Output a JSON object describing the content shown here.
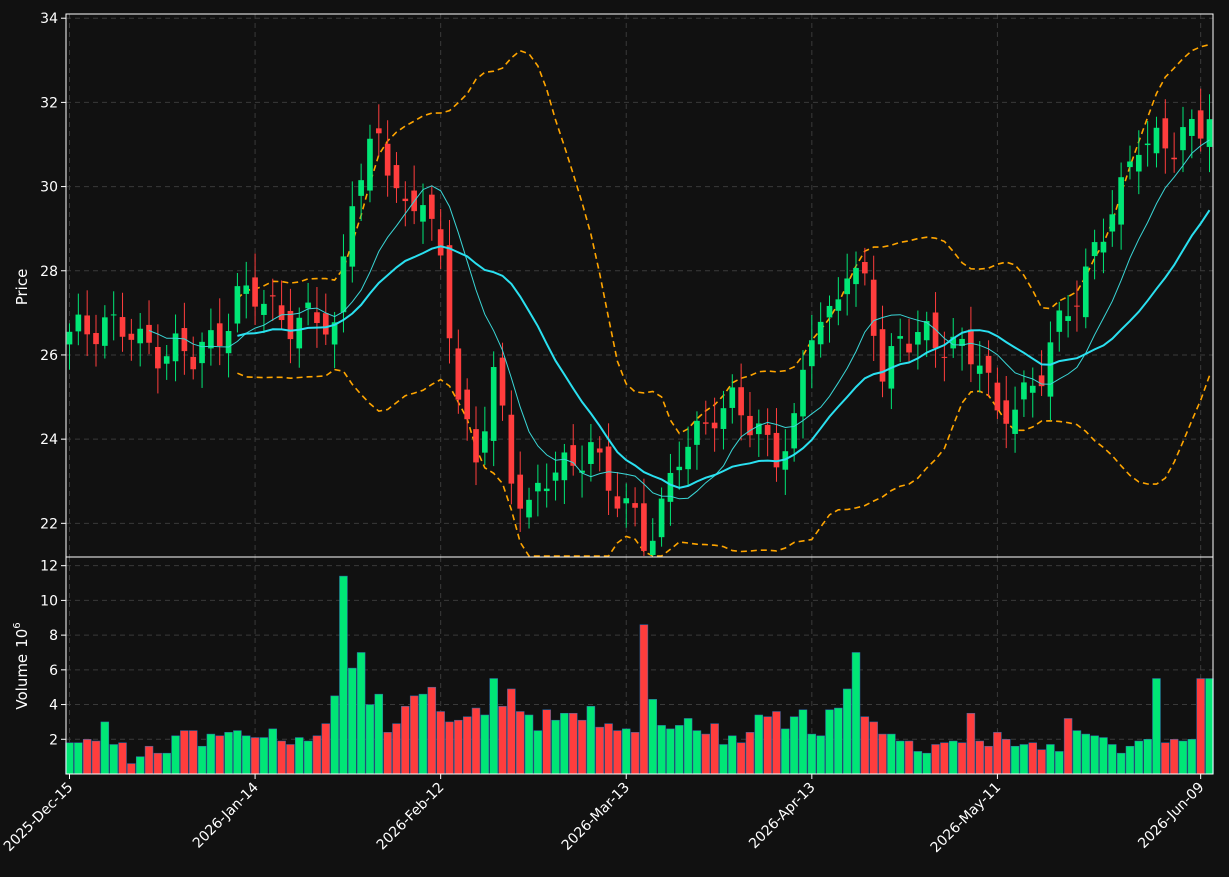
{
  "chart_data": {
    "type": "candlestick",
    "colors": {
      "up": "#00e676",
      "down": "#ff3d3d",
      "ma_fast": "#3ad6d6",
      "ma_slow": "#2ae0f0",
      "band": "#ffa500",
      "background": "#111111",
      "grid": "#3a3a3a"
    },
    "price_panel": {
      "ylabel": "Price",
      "ylim": [
        21.2,
        34.1
      ],
      "yticks": [
        22,
        24,
        26,
        28,
        30,
        32,
        34
      ],
      "ytick_labels": [
        "22",
        "24",
        "26",
        "28",
        "30",
        "32",
        "34"
      ]
    },
    "volume_panel": {
      "ylabel": "Volume",
      "ylabel_exp": "10",
      "ylabel_sup": "6",
      "ylim": [
        0,
        12.5
      ],
      "yticks": [
        2,
        4,
        6,
        8,
        10,
        12
      ],
      "ytick_labels": [
        "2",
        "4",
        "6",
        "8",
        "10",
        "12"
      ]
    },
    "x_ticks": [
      {
        "label": "2025-Dec-15",
        "index": 0
      },
      {
        "label": "2026-Jan-14",
        "index": 21
      },
      {
        "label": "2026-Feb-12",
        "index": 42
      },
      {
        "label": "2026-Mar-13",
        "index": 63
      },
      {
        "label": "2026-Apr-13",
        "index": 84
      },
      {
        "label": "2026-May-11",
        "index": 105
      },
      {
        "label": "2026-Jun-09",
        "index": 128
      }
    ],
    "ohlc_anchors": [
      [
        0,
        26.35
      ],
      [
        4,
        26.9
      ],
      [
        8,
        26.2
      ],
      [
        12,
        26.2
      ],
      [
        14,
        25.8
      ],
      [
        17,
        26.6
      ],
      [
        19,
        27.4
      ],
      [
        22,
        27.2
      ],
      [
        25,
        26.9
      ],
      [
        30,
        26.6
      ],
      [
        32,
        30.0
      ],
      [
        35,
        31.0
      ],
      [
        38,
        29.5
      ],
      [
        40,
        29.9
      ],
      [
        42,
        27.9
      ],
      [
        44,
        25.2
      ],
      [
        46,
        23.5
      ],
      [
        48,
        25.6
      ],
      [
        50,
        22.9
      ],
      [
        52,
        22.6
      ],
      [
        55,
        23.3
      ],
      [
        57,
        23.1
      ],
      [
        59,
        24.2
      ],
      [
        61,
        22.8
      ],
      [
        63,
        22.3
      ],
      [
        65,
        21.6
      ],
      [
        67,
        22.5
      ],
      [
        69,
        23.5
      ],
      [
        71,
        24.0
      ],
      [
        73,
        24.8
      ],
      [
        75,
        24.9
      ],
      [
        77,
        24.2
      ],
      [
        80,
        23.8
      ],
      [
        82,
        24.3
      ],
      [
        84,
        26.5
      ],
      [
        86,
        26.9
      ],
      [
        88,
        28.3
      ],
      [
        90,
        27.5
      ],
      [
        92,
        25.5
      ],
      [
        94,
        26.5
      ],
      [
        96,
        26.6
      ],
      [
        98,
        26.0
      ],
      [
        100,
        26.4
      ],
      [
        103,
        26.0
      ],
      [
        105,
        24.3
      ],
      [
        108,
        25.2
      ],
      [
        110,
        25.6
      ],
      [
        113,
        27.0
      ],
      [
        116,
        28.6
      ],
      [
        119,
        29.7
      ],
      [
        121,
        31.2
      ],
      [
        123,
        31.2
      ],
      [
        125,
        30.8
      ],
      [
        128,
        31.5
      ],
      [
        129,
        32.0
      ]
    ],
    "volume_values": [
      1.8,
      1.8,
      2.0,
      1.9,
      3.0,
      1.7,
      1.8,
      0.6,
      1.0,
      1.6,
      1.2,
      1.2,
      2.2,
      2.5,
      2.5,
      1.6,
      2.3,
      2.2,
      2.4,
      2.5,
      2.2,
      2.1,
      2.1,
      2.6,
      1.9,
      1.7,
      2.1,
      1.9,
      2.2,
      2.9,
      4.5,
      11.4,
      6.1,
      7.0,
      4.0,
      4.6,
      2.4,
      2.9,
      3.9,
      4.5,
      4.6,
      5.0,
      3.6,
      3.0,
      3.1,
      3.3,
      3.8,
      3.4,
      5.5,
      3.9,
      4.9,
      3.6,
      3.4,
      2.5,
      3.7,
      3.1,
      3.5,
      3.5,
      3.1,
      3.9,
      2.7,
      2.9,
      2.5,
      2.6,
      2.4,
      8.6,
      4.3,
      2.8,
      2.6,
      2.8,
      3.2,
      2.5,
      2.3,
      2.9,
      1.7,
      2.2,
      1.8,
      2.4,
      3.4,
      3.3,
      3.6,
      2.6,
      3.3,
      3.7,
      2.3,
      2.2,
      3.7,
      3.8,
      4.9,
      7.0,
      3.3,
      3.0,
      2.3,
      2.3,
      1.9,
      1.9,
      1.3,
      1.2,
      1.7,
      1.8,
      1.9,
      1.8,
      3.5,
      1.9,
      1.6,
      2.4,
      2.0,
      1.6,
      1.7,
      1.8,
      1.4,
      1.7,
      1.3,
      3.2,
      2.5,
      2.3,
      2.2,
      2.1,
      1.7,
      1.2,
      1.6,
      1.9,
      2.0,
      5.5,
      1.8,
      2.0,
      1.9,
      2.0,
      5.5,
      5.5
    ],
    "bars": 130
  }
}
